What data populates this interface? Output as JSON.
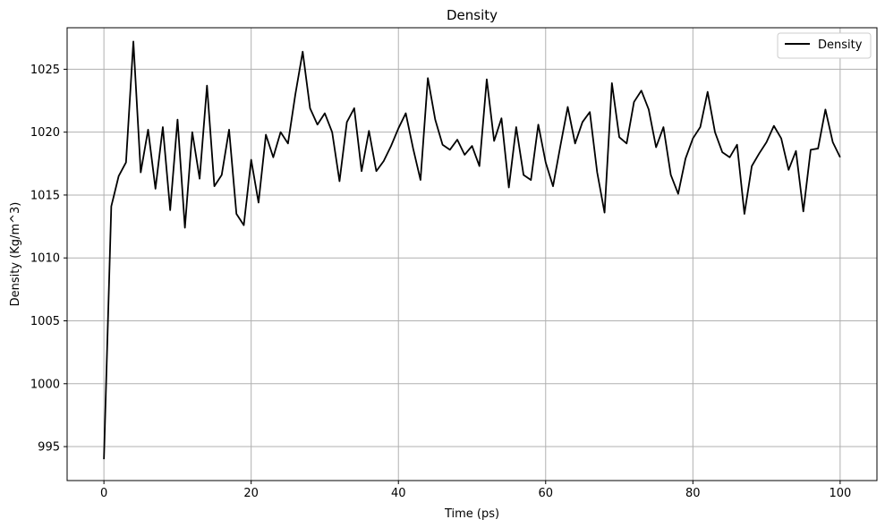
{
  "chart_data": {
    "type": "line",
    "title": "Density",
    "xlabel": "Time (ps)",
    "ylabel": "Density (Kg/m^3)",
    "xlim": [
      -5,
      105
    ],
    "ylim": [
      992.3,
      1028.3
    ],
    "xticks": [
      0,
      20,
      40,
      60,
      80,
      100
    ],
    "yticks": [
      995,
      1000,
      1005,
      1010,
      1015,
      1020,
      1025
    ],
    "grid": true,
    "legend_position": "top-right",
    "series": [
      {
        "name": "Density",
        "color": "#000000",
        "x": [
          0,
          1,
          2,
          3,
          4,
          5,
          6,
          7,
          8,
          9,
          10,
          11,
          12,
          13,
          14,
          15,
          16,
          17,
          18,
          19,
          20,
          21,
          22,
          23,
          24,
          25,
          26,
          27,
          28,
          29,
          30,
          31,
          32,
          33,
          34,
          35,
          36,
          37,
          38,
          39,
          40,
          41,
          42,
          43,
          44,
          45,
          46,
          47,
          48,
          49,
          50,
          51,
          52,
          53,
          54,
          55,
          56,
          57,
          58,
          59,
          60,
          61,
          62,
          63,
          64,
          65,
          66,
          67,
          68,
          69,
          70,
          71,
          72,
          73,
          74,
          75,
          76,
          77,
          78,
          79,
          80,
          81,
          82,
          83,
          84,
          85,
          86,
          87,
          88,
          89,
          90,
          91,
          92,
          93,
          94,
          95,
          96,
          97,
          98,
          99,
          100
        ],
        "y": [
          994.0,
          1014.1,
          1016.5,
          1017.6,
          1027.2,
          1016.8,
          1020.2,
          1015.5,
          1020.4,
          1013.8,
          1021.0,
          1012.4,
          1020.0,
          1016.3,
          1023.7,
          1015.7,
          1016.6,
          1020.2,
          1013.5,
          1012.6,
          1017.8,
          1014.4,
          1019.8,
          1018.0,
          1020.0,
          1019.1,
          1023.0,
          1026.4,
          1021.9,
          1020.6,
          1021.5,
          1020.0,
          1016.1,
          1020.8,
          1021.9,
          1016.9,
          1020.1,
          1016.9,
          1017.7,
          1018.9,
          1020.3,
          1021.5,
          1018.7,
          1016.2,
          1024.3,
          1021.0,
          1019.0,
          1018.6,
          1019.4,
          1018.2,
          1018.9,
          1017.3,
          1024.2,
          1019.3,
          1021.1,
          1015.6,
          1020.4,
          1016.6,
          1016.2,
          1020.6,
          1017.6,
          1015.7,
          1018.9,
          1022.0,
          1019.1,
          1020.8,
          1021.6,
          1016.8,
          1013.6,
          1023.9,
          1019.6,
          1019.1,
          1022.4,
          1023.3,
          1021.8,
          1018.8,
          1020.4,
          1016.6,
          1015.1,
          1017.9,
          1019.5,
          1020.4,
          1023.2,
          1020.0,
          1018.4,
          1018.0,
          1019.0,
          1013.5,
          1017.3,
          1018.3,
          1019.2,
          1020.5,
          1019.5,
          1017.0,
          1018.5,
          1013.7,
          1018.6,
          1018.7,
          1021.8,
          1019.2,
          1018.0
        ]
      }
    ]
  }
}
